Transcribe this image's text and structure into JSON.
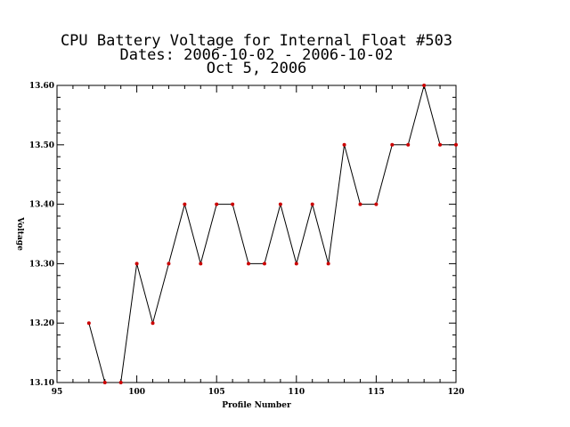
{
  "chart_data": {
    "type": "line",
    "title_lines": [
      "CPU Battery Voltage for Internal Float #503",
      "Dates:  2006-10-02 -  2006-10-02",
      "Oct  5, 2006"
    ],
    "xlabel": "Profile Number",
    "ylabel": "Voltage",
    "xlim": [
      95,
      120
    ],
    "ylim": [
      13.1,
      13.6
    ],
    "xticks": [
      95,
      100,
      105,
      110,
      115,
      120
    ],
    "xtick_labels": [
      "95",
      "100",
      "105",
      "110",
      "115",
      "120"
    ],
    "yticks": [
      13.1,
      13.2,
      13.3,
      13.4,
      13.5,
      13.6
    ],
    "ytick_labels": [
      "13.10",
      "13.20",
      "13.30",
      "13.40",
      "13.50",
      "13.60"
    ],
    "x_minor_step": 1,
    "y_minor_step": 0.02,
    "grid": false,
    "series": [
      {
        "x": [
          97,
          98,
          99,
          100,
          101,
          102,
          103,
          104,
          105,
          106,
          107,
          108,
          109,
          110,
          111,
          112,
          113,
          114,
          115,
          116,
          117,
          118,
          119,
          120
        ],
        "y": [
          13.2,
          13.1,
          13.1,
          13.3,
          13.2,
          13.3,
          13.4,
          13.3,
          13.4,
          13.4,
          13.3,
          13.3,
          13.4,
          13.3,
          13.4,
          13.3,
          13.5,
          13.4,
          13.4,
          13.5,
          13.5,
          13.6,
          13.5,
          13.5
        ],
        "line_color": "#000000",
        "marker_color": "#cc0000"
      }
    ]
  }
}
